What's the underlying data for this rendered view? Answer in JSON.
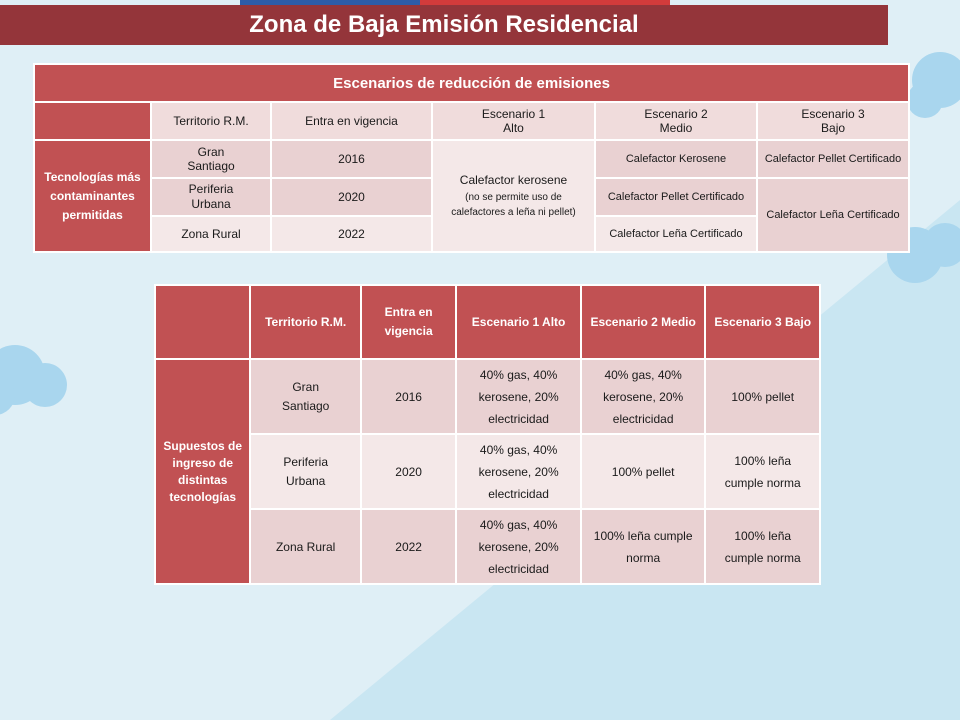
{
  "title": "Zona de Baja Emisión Residencial",
  "colors": {
    "title_bg": "#94353a",
    "header_red": "#c15153",
    "cell_dark": "#e9d1d2",
    "cell_light": "#f4e8e8",
    "topbar_blue": "#2d5ca8",
    "topbar_red": "#d33b3b"
  },
  "table1": {
    "header": "Escenarios de reducción de emisiones",
    "columns": [
      "Territorio R.M.",
      "Entra en vigencia",
      "Escenario 1",
      "Alto",
      "Escenario 2",
      "Medio",
      "Escenario 3",
      "Bajo"
    ],
    "row_label": "Tecnologías más contaminantes permitidas",
    "rows": [
      {
        "territorio_1": "Gran",
        "territorio_2": "Santiago",
        "vigencia": "2016",
        "esc2": "Calefactor Kerosene",
        "esc3": "Calefactor Pellet Certificado"
      },
      {
        "territorio_1": "Periferia",
        "territorio_2": "Urbana",
        "vigencia": "2020",
        "esc2": "Calefactor Pellet Certificado",
        "esc3": "Calefactor Leña Certificado"
      },
      {
        "territorio_1": "Zona Rural",
        "territorio_2": "",
        "vigencia": "2022",
        "esc2": "Calefactor Leña Certificado"
      }
    ],
    "esc1_main": "Calefactor kerosene",
    "esc1_note": "(no se permite uso de calefactores a leña ni pellet)"
  },
  "table2": {
    "columns": [
      "Territorio R.M.",
      "Entra en vigencia",
      "Escenario 1 Alto",
      "Escenario 2 Medio",
      "Escenario 3 Bajo"
    ],
    "row_label": "Supuestos de ingreso de distintas tecnologías",
    "rows": [
      {
        "territorio": "Gran Santiago",
        "vigencia": "2016",
        "esc1": "40% gas, 40% kerosene, 20% electricidad",
        "esc2": "40% gas, 40% kerosene, 20% electricidad",
        "esc3": "100% pellet"
      },
      {
        "territorio": "Periferia Urbana",
        "vigencia": "2020",
        "esc1": "40% gas, 40% kerosene, 20% electricidad",
        "esc2": "100% pellet",
        "esc3": "100% leña cumple norma"
      },
      {
        "territorio": "Zona Rural",
        "vigencia": "2022",
        "esc1": "40% gas, 40% kerosene, 20% electricidad",
        "esc2": "100% leña cumple norma",
        "esc3": "100% leña cumple norma"
      }
    ]
  }
}
